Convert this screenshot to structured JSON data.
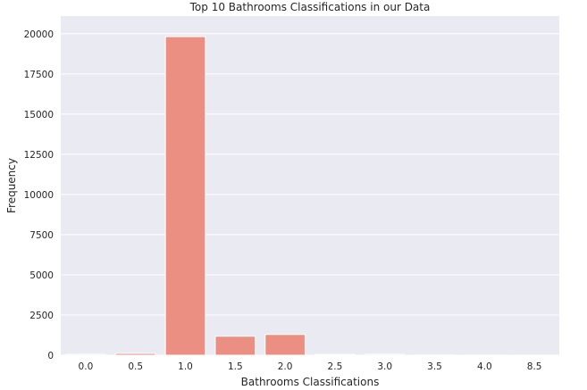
{
  "chart_data": {
    "type": "bar",
    "title": "Top 10 Bathrooms Classifications in our Data",
    "xlabel": "Bathrooms Classifications",
    "ylabel": "Frequency",
    "categories": [
      "0.0",
      "0.5",
      "1.0",
      "1.5",
      "2.0",
      "2.5",
      "3.0",
      "3.5",
      "4.0",
      "8.5"
    ],
    "values": [
      60,
      110,
      19820,
      1180,
      1290,
      50,
      60,
      15,
      10,
      5
    ],
    "ylim": [
      0,
      21100
    ],
    "yticks": [
      0,
      2500,
      5000,
      7500,
      10000,
      12500,
      15000,
      17500,
      20000
    ],
    "grid": true,
    "bar_color": "#ea8f82",
    "background_color": "#eaeaf2",
    "grid_color": "#ffffff"
  }
}
